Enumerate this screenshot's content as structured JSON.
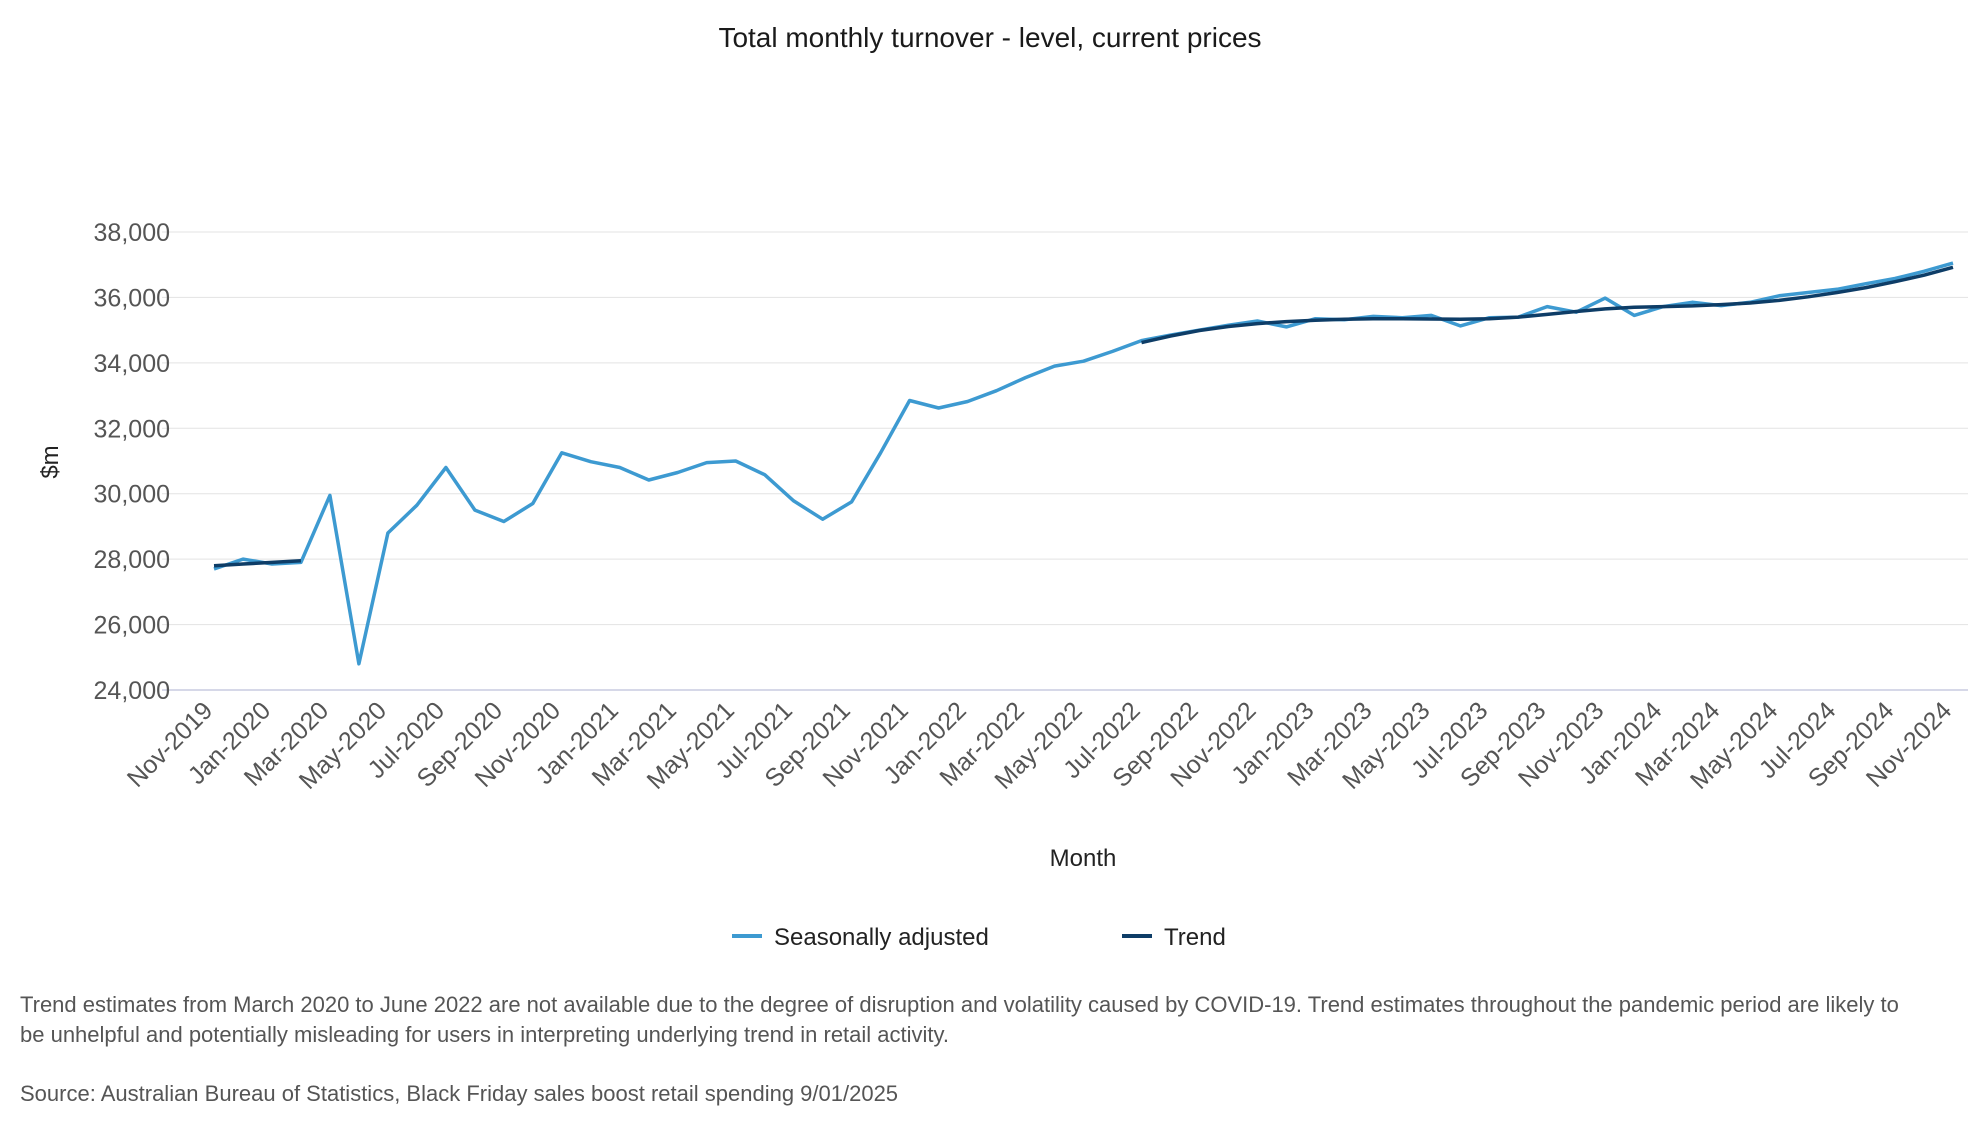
{
  "chart_data": {
    "type": "line",
    "title": "Total monthly turnover - level, current prices",
    "xlabel": "Month",
    "ylabel": "$m",
    "ylim": [
      24000,
      38000
    ],
    "yticks": [
      24000,
      26000,
      28000,
      30000,
      32000,
      34000,
      36000,
      38000
    ],
    "ytick_labels": [
      "24,000",
      "26,000",
      "28,000",
      "30,000",
      "32,000",
      "34,000",
      "36,000",
      "38,000"
    ],
    "x": [
      "Nov-2019",
      "Dec-2019",
      "Jan-2020",
      "Feb-2020",
      "Mar-2020",
      "Apr-2020",
      "May-2020",
      "Jun-2020",
      "Jul-2020",
      "Aug-2020",
      "Sep-2020",
      "Oct-2020",
      "Nov-2020",
      "Dec-2020",
      "Jan-2021",
      "Feb-2021",
      "Mar-2021",
      "Apr-2021",
      "May-2021",
      "Jun-2021",
      "Jul-2021",
      "Aug-2021",
      "Sep-2021",
      "Oct-2021",
      "Nov-2021",
      "Dec-2021",
      "Jan-2022",
      "Feb-2022",
      "Mar-2022",
      "Apr-2022",
      "May-2022",
      "Jun-2022",
      "Jul-2022",
      "Aug-2022",
      "Sep-2022",
      "Oct-2022",
      "Nov-2022",
      "Dec-2022",
      "Jan-2023",
      "Feb-2023",
      "Mar-2023",
      "Apr-2023",
      "May-2023",
      "Jun-2023",
      "Jul-2023",
      "Aug-2023",
      "Sep-2023",
      "Oct-2023",
      "Nov-2023",
      "Dec-2023",
      "Jan-2024",
      "Feb-2024",
      "Mar-2024",
      "Apr-2024",
      "May-2024",
      "Jun-2024",
      "Jul-2024",
      "Aug-2024",
      "Sep-2024",
      "Oct-2024",
      "Nov-2024"
    ],
    "xtick_labels": [
      "Nov-2019",
      "Jan-2020",
      "Mar-2020",
      "May-2020",
      "Jul-2020",
      "Sep-2020",
      "Nov-2020",
      "Jan-2021",
      "Mar-2021",
      "May-2021",
      "Jul-2021",
      "Sep-2021",
      "Nov-2021",
      "Jan-2022",
      "Mar-2022",
      "May-2022",
      "Jul-2022",
      "Sep-2022",
      "Nov-2022",
      "Jan-2023",
      "Mar-2023",
      "May-2023",
      "Jul-2023",
      "Sep-2023",
      "Nov-2023",
      "Jan-2024",
      "Mar-2024",
      "May-2024",
      "Jul-2024",
      "Sep-2024",
      "Nov-2024"
    ],
    "series": [
      {
        "name": "Seasonally adjusted",
        "color": "#3d9ad1",
        "values": [
          27700,
          28000,
          27850,
          27900,
          29950,
          24800,
          28800,
          29650,
          30800,
          29500,
          29150,
          29700,
          31250,
          30980,
          30800,
          30420,
          30650,
          30950,
          31000,
          30580,
          29780,
          29220,
          29750,
          31250,
          32850,
          32620,
          32820,
          33150,
          33550,
          33900,
          34050,
          34350,
          34680,
          34850,
          35000,
          35150,
          35280,
          35100,
          35350,
          35320,
          35420,
          35380,
          35450,
          35130,
          35380,
          35400,
          35720,
          35550,
          35980,
          35450,
          35720,
          35850,
          35750,
          35850,
          36050,
          36150,
          36250,
          36420,
          36580,
          36800,
          37050
        ]
      },
      {
        "name": "Trend",
        "color": "#0e3d67",
        "values": [
          27800,
          27850,
          27900,
          27950,
          null,
          null,
          null,
          null,
          null,
          null,
          null,
          null,
          null,
          null,
          null,
          null,
          null,
          null,
          null,
          null,
          null,
          null,
          null,
          null,
          null,
          null,
          null,
          null,
          null,
          null,
          null,
          null,
          34620,
          34820,
          34990,
          35110,
          35200,
          35260,
          35300,
          35330,
          35350,
          35350,
          35340,
          35330,
          35350,
          35400,
          35480,
          35570,
          35650,
          35700,
          35720,
          35740,
          35780,
          35830,
          35910,
          36020,
          36150,
          36300,
          36480,
          36680,
          36920
        ]
      }
    ],
    "grid": true,
    "legend_position": "bottom-center"
  },
  "legend": {
    "seasonally_adjusted": "Seasonally adjusted",
    "trend": "Trend"
  },
  "footnote": "Trend estimates from March 2020 to June 2022 are not available due to the degree of disruption and volatility caused by COVID-19. Trend estimates throughout the pandemic period are likely to be unhelpful and potentially misleading for users in interpreting underlying trend in retail activity.",
  "source": "Source: Australian Bureau of Statistics, Black Friday sales boost retail spending 9/01/2025"
}
